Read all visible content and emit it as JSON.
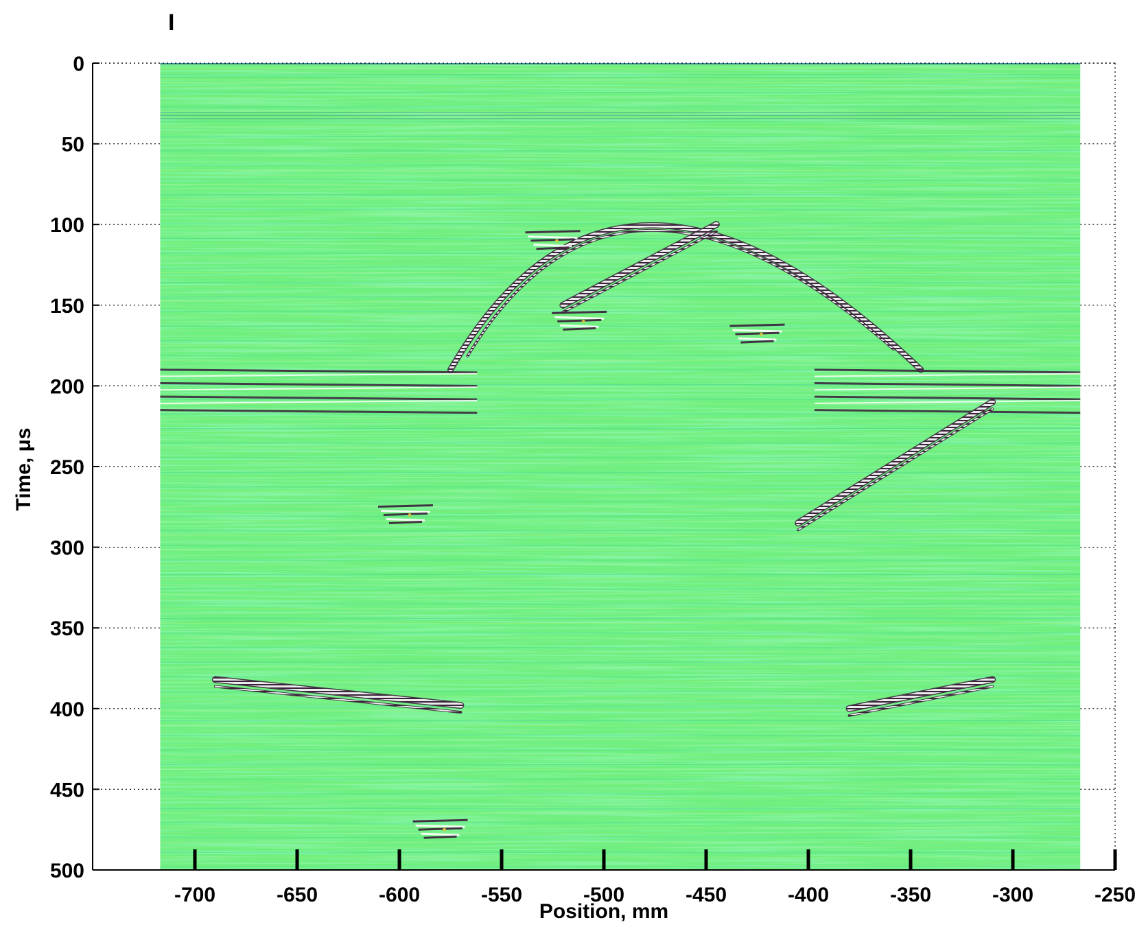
{
  "chart_data": {
    "type": "heatmap",
    "panel_label": "I",
    "xlabel": "Position, mm",
    "ylabel": "Time, μs",
    "xlim": [
      -750,
      -250
    ],
    "ylim": [
      500,
      0
    ],
    "y_axis_reversed": true,
    "data_extent_x": [
      -717,
      -267
    ],
    "x_ticks": [
      -700,
      -650,
      -600,
      -550,
      -500,
      -450,
      -400,
      -350,
      -300,
      -250
    ],
    "y_ticks": [
      0,
      50,
      100,
      150,
      200,
      250,
      300,
      350,
      400,
      450,
      500
    ],
    "grid": "dotted, left and right margins only",
    "colors": {
      "background": "#6fef80",
      "noise_light": "#c8f070",
      "noise_dark": "#2fc6a6",
      "strong_positive": "#ffffff",
      "strong_negative": "#3a1e3a",
      "accent": "#e0c040"
    },
    "features": [
      {
        "kind": "arc",
        "apex_x": -493,
        "apex_y": 62,
        "left_end_x": -575,
        "left_end_y": 190,
        "right_end_x": -345,
        "right_end_y": 190
      },
      {
        "kind": "flat_band",
        "x_from": -717,
        "x_to": -562,
        "y_from": 190,
        "y_to": 215
      },
      {
        "kind": "flat_band",
        "x_from": -397,
        "x_to": -267,
        "y_from": 190,
        "y_to": 215
      },
      {
        "kind": "diagonal_band",
        "x_from": -520,
        "y_from": 150,
        "x_to": -445,
        "y_to": 100
      },
      {
        "kind": "diagonal_band",
        "x_from": -405,
        "y_from": 285,
        "x_to": -310,
        "y_to": 210
      },
      {
        "kind": "cluster",
        "x": -525,
        "y": 110
      },
      {
        "kind": "cluster",
        "x": -512,
        "y": 160
      },
      {
        "kind": "cluster",
        "x": -425,
        "y": 168
      },
      {
        "kind": "cluster",
        "x": -597,
        "y": 280
      },
      {
        "kind": "cluster",
        "x": -580,
        "y": 475
      },
      {
        "kind": "diagonal_band",
        "x_from": -690,
        "y_from": 382,
        "x_to": -570,
        "y_to": 398
      },
      {
        "kind": "diagonal_band",
        "x_from": -380,
        "y_from": 400,
        "x_to": -310,
        "y_to": 382
      }
    ]
  }
}
